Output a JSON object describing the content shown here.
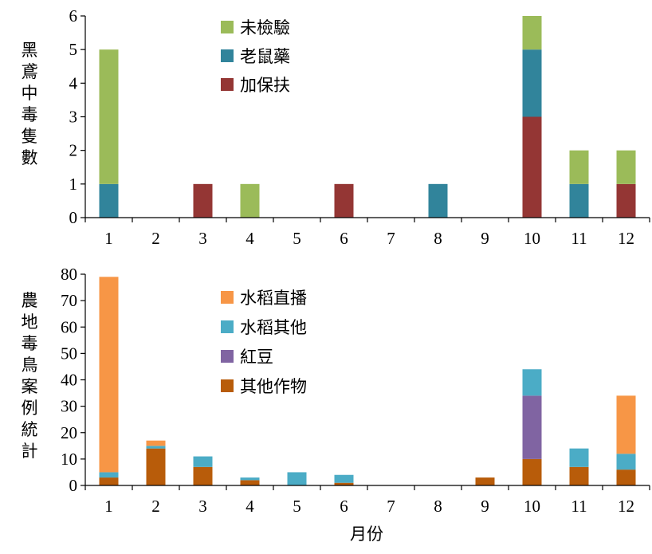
{
  "chart_data": [
    {
      "type": "bar",
      "stacked": true,
      "categories": [
        "1",
        "2",
        "3",
        "4",
        "5",
        "6",
        "7",
        "8",
        "9",
        "10",
        "11",
        "12"
      ],
      "ylabel": "黑鳶中毒隻數",
      "xlabel": "",
      "ylim": [
        0,
        6
      ],
      "yticks": [
        0,
        1,
        2,
        3,
        4,
        5,
        6
      ],
      "legend_position": "top-left-center",
      "series": [
        {
          "name": "加保扶",
          "color": "#943634",
          "values": [
            0,
            0,
            1,
            0,
            0,
            1,
            0,
            0,
            0,
            3,
            0,
            1
          ]
        },
        {
          "name": "老鼠藥",
          "color": "#31849b",
          "values": [
            1,
            0,
            0,
            0,
            0,
            0,
            0,
            1,
            0,
            2,
            1,
            0
          ]
        },
        {
          "name": "未檢驗",
          "color": "#9bbb59",
          "values": [
            4,
            0,
            0,
            1,
            0,
            0,
            0,
            0,
            0,
            1,
            1,
            1
          ]
        }
      ],
      "legend_order": [
        "未檢驗",
        "老鼠藥",
        "加保扶"
      ]
    },
    {
      "type": "bar",
      "stacked": true,
      "categories": [
        "1",
        "2",
        "3",
        "4",
        "5",
        "6",
        "7",
        "8",
        "9",
        "10",
        "11",
        "12"
      ],
      "ylabel": "農地毒鳥案例統計",
      "xlabel": "月份",
      "ylim": [
        0,
        80
      ],
      "yticks": [
        0,
        10,
        20,
        30,
        40,
        50,
        60,
        70,
        80
      ],
      "legend_position": "top-left-center",
      "series": [
        {
          "name": "其他作物",
          "color": "#b85c0a",
          "values": [
            3,
            14,
            7,
            2,
            0,
            1,
            0,
            0,
            3,
            10,
            7,
            6
          ]
        },
        {
          "name": "紅豆",
          "color": "#8064a2",
          "values": [
            0,
            0,
            0,
            0,
            0,
            0,
            0,
            0,
            0,
            24,
            0,
            0
          ]
        },
        {
          "name": "水稻其他",
          "color": "#4bacc6",
          "values": [
            2,
            1,
            4,
            1,
            5,
            3,
            0,
            0,
            0,
            10,
            7,
            6
          ]
        },
        {
          "name": "水稻直播",
          "color": "#f79646",
          "values": [
            74,
            2,
            0,
            0,
            0,
            0,
            0,
            0,
            0,
            0,
            0,
            22
          ]
        }
      ],
      "legend_order": [
        "水稻直播",
        "水稻其他",
        "紅豆",
        "其他作物"
      ]
    }
  ]
}
